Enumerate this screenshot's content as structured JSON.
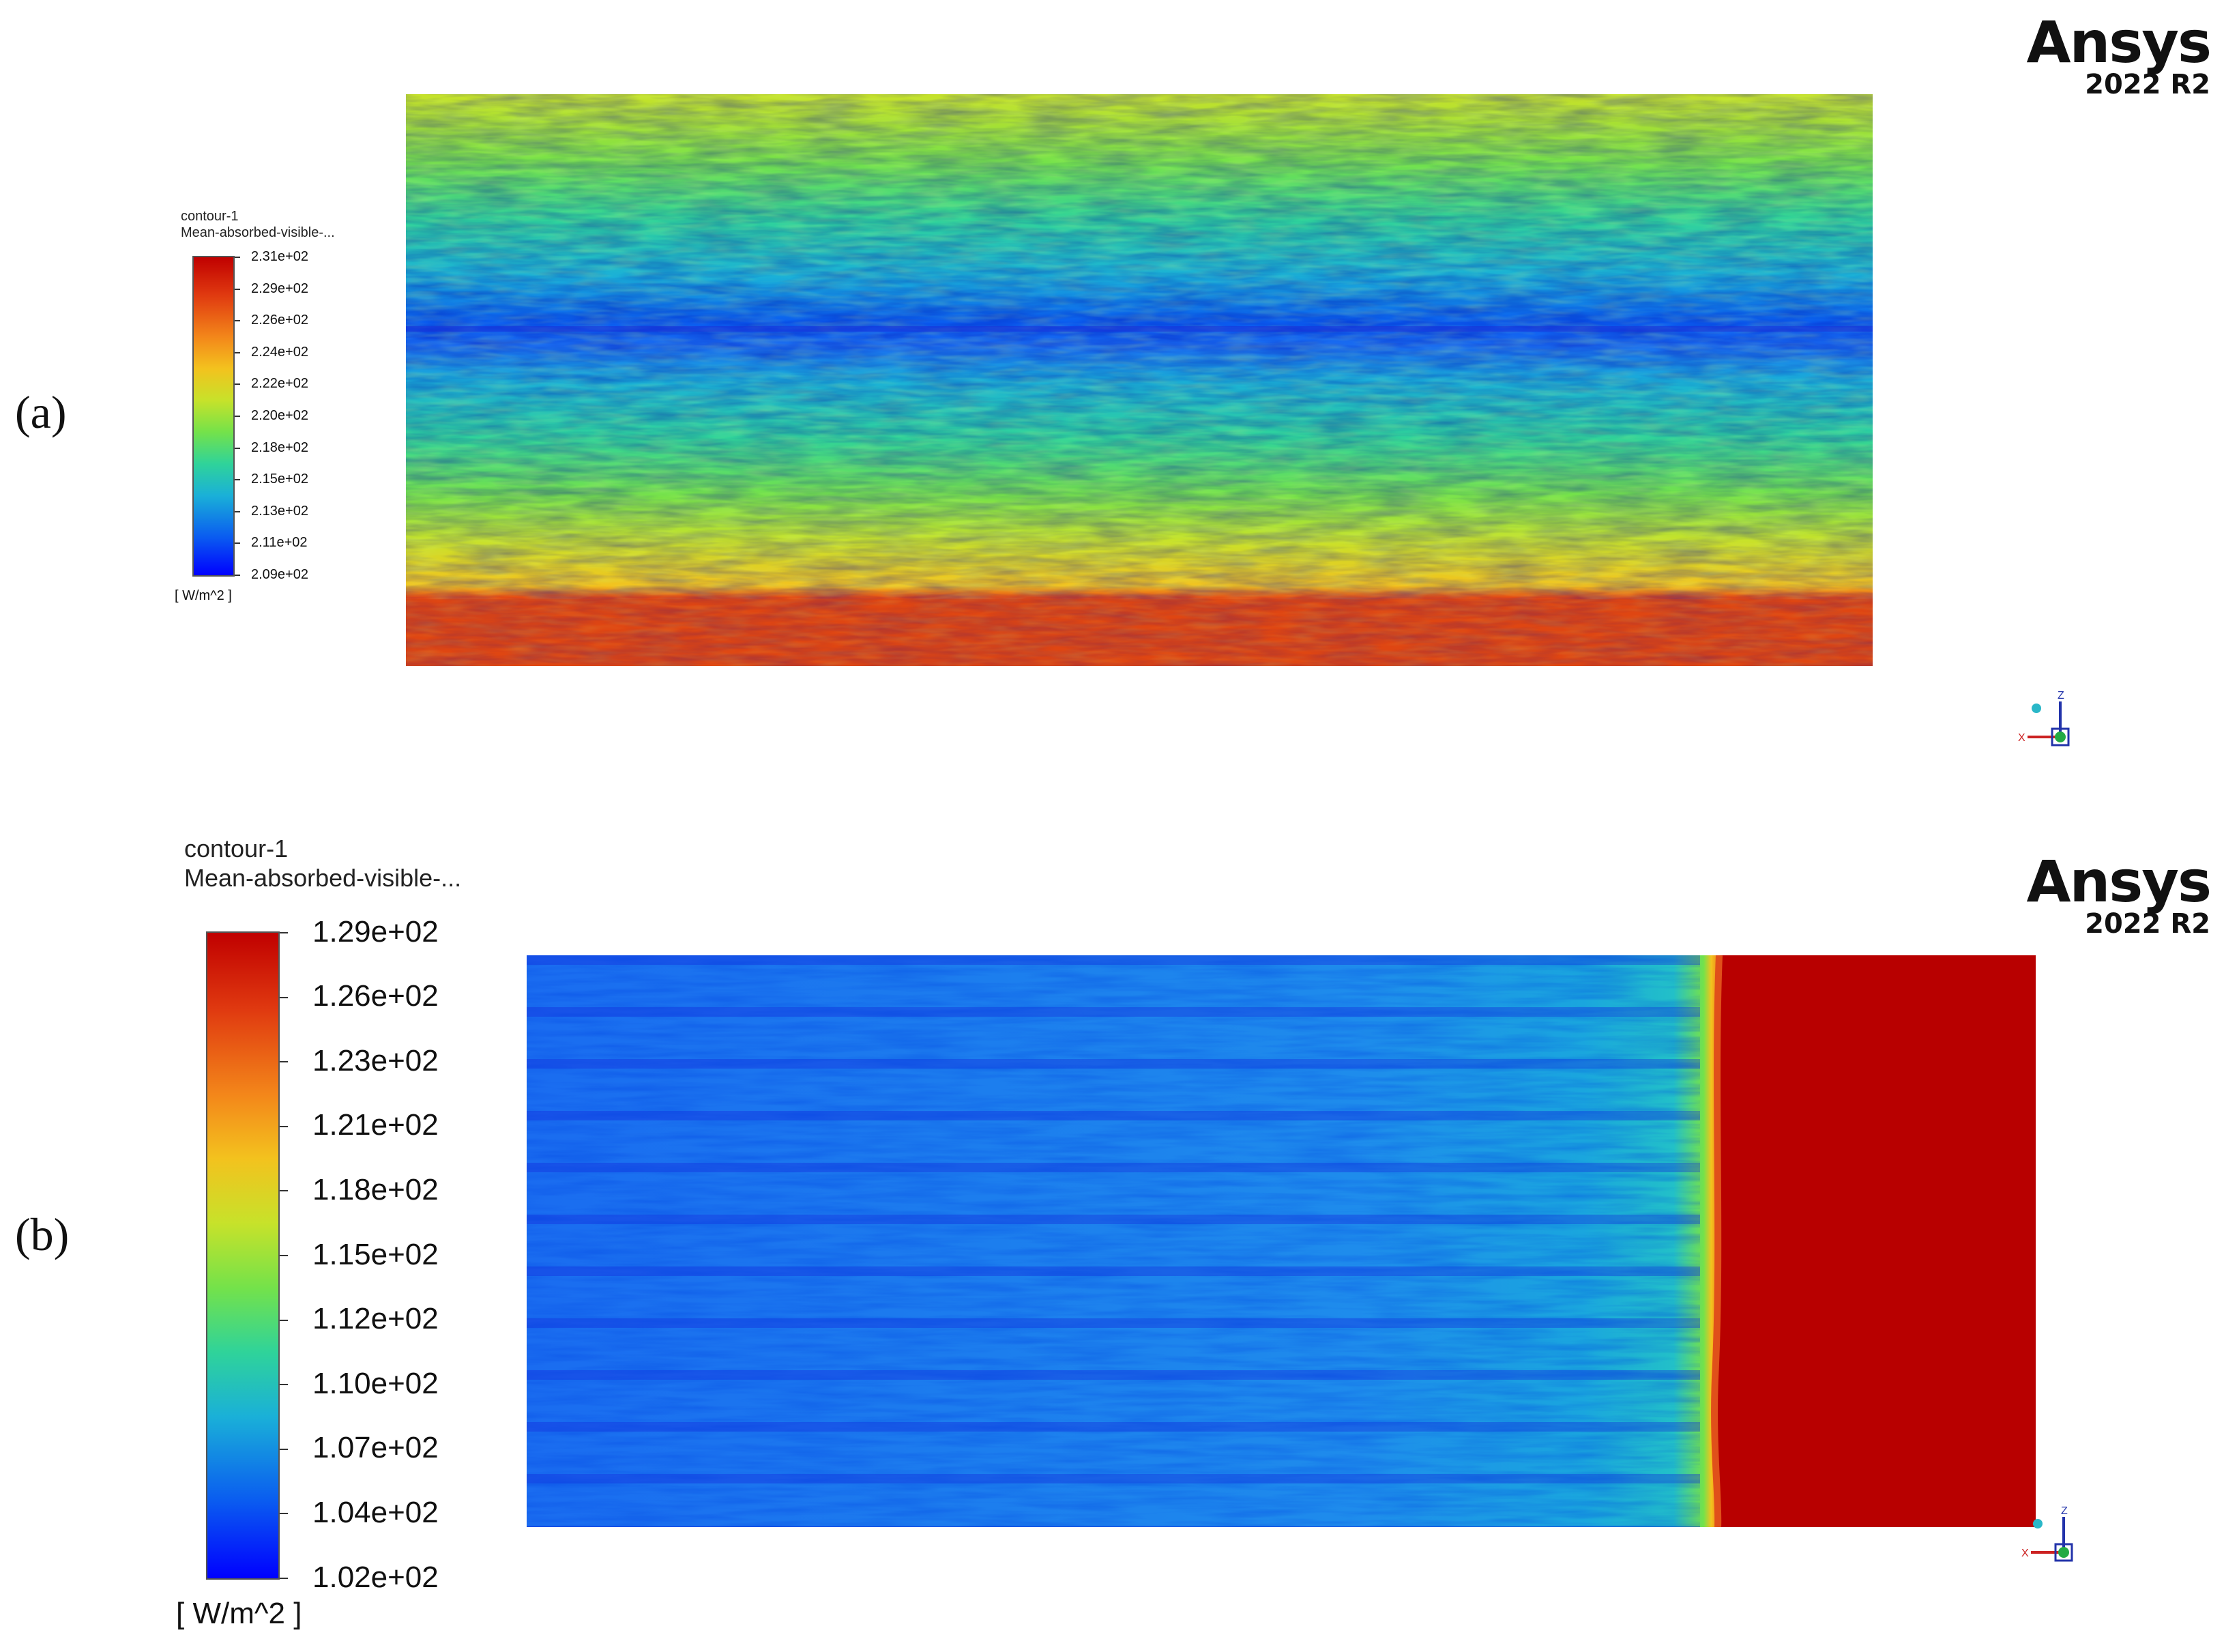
{
  "panels": [
    {
      "label": "(a)",
      "legend": {
        "title": "contour-1",
        "variable": "Mean-absorbed-visible-...",
        "ticks": [
          "2.31e+02",
          "2.29e+02",
          "2.26e+02",
          "2.24e+02",
          "2.22e+02",
          "2.20e+02",
          "2.18e+02",
          "2.15e+02",
          "2.13e+02",
          "2.11e+02",
          "2.09e+02"
        ],
        "units": "[ W/m^2 ]",
        "min": 209,
        "max": 231
      },
      "brand": {
        "name": "Ansys",
        "version": "2022 R2"
      },
      "axes": {
        "x": "X",
        "z": "Z"
      }
    },
    {
      "label": "(b)",
      "legend": {
        "title": "contour-1",
        "variable": "Mean-absorbed-visible-...",
        "ticks": [
          "1.29e+02",
          "1.26e+02",
          "1.23e+02",
          "1.21e+02",
          "1.18e+02",
          "1.15e+02",
          "1.12e+02",
          "1.10e+02",
          "1.07e+02",
          "1.04e+02",
          "1.02e+02"
        ],
        "units": "[ W/m^2 ]",
        "min": 102,
        "max": 129
      },
      "brand": {
        "name": "Ansys",
        "version": "2022 R2"
      },
      "axes": {
        "x": "X",
        "z": "Z"
      }
    }
  ],
  "colors": {
    "jet": [
      "#0000ff",
      "#0a5cf0",
      "#1ab0d8",
      "#2fd39a",
      "#74e24a",
      "#c7e22a",
      "#f3c21e",
      "#f3861a",
      "#e44a14",
      "#c41a0e",
      "#b00000"
    ]
  }
}
